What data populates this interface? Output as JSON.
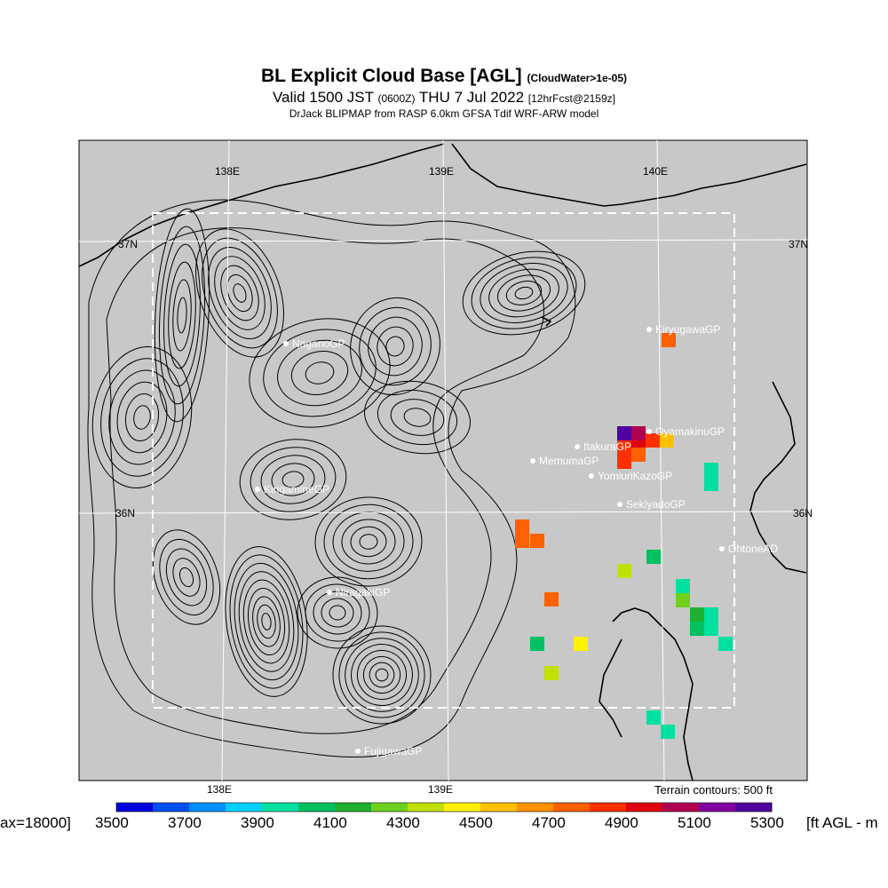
{
  "title": {
    "main": "BL Explicit Cloud Base [AGL]",
    "main_note": "(CloudWater>1e-05)",
    "valid_prefix": "Valid 1500 JST",
    "valid_utc": "(0600Z)",
    "valid_date": "THU 7 Jul 2022",
    "forecast": "[12hrFcst@2159z]",
    "model": "DrJack BLIPMAP from RASP 6.0km GFSA Tdif WRF-ARW model"
  },
  "axes": {
    "lon_top": [
      "138E",
      "139E",
      "140E"
    ],
    "lon_bottom": [
      "138E",
      "139E"
    ],
    "lat_left": [
      "37N",
      "36N"
    ],
    "lat_right": [
      "37N",
      "36N"
    ]
  },
  "sites": [
    {
      "name": "KiryugawaGP"
    },
    {
      "name": "OyamakinuGP"
    },
    {
      "name": "ItakuraGP"
    },
    {
      "name": "MemumaGP"
    },
    {
      "name": "YomiuriKazoGP"
    },
    {
      "name": "SekiyadoGP"
    },
    {
      "name": "OhtoneAD"
    },
    {
      "name": "NaganoGP"
    },
    {
      "name": "KirigaminеGP"
    },
    {
      "name": "NiragakiGP"
    },
    {
      "name": "FujigawaGP"
    }
  ],
  "colorbar": {
    "left_label": "ax=18000]",
    "right_label": "[ft AGL - m",
    "ticks": [
      "3500",
      "3700",
      "3900",
      "4100",
      "4300",
      "4500",
      "4700",
      "4900",
      "5100",
      "5300"
    ],
    "colors": [
      "#0000e0",
      "#0050f0",
      "#0090ff",
      "#00d0ff",
      "#00e0a0",
      "#00c060",
      "#20b030",
      "#70d020",
      "#c0e000",
      "#fff000",
      "#ffc000",
      "#ff9000",
      "#ff6000",
      "#ff3000",
      "#e00010",
      "#b00050",
      "#8000a0",
      "#5000a0"
    ]
  },
  "terrain_note": "Terrain contours: 500 ft",
  "colors": {
    "map_bg": "#c8c8c8",
    "contour": "#000000",
    "grid": "#ffffff"
  }
}
